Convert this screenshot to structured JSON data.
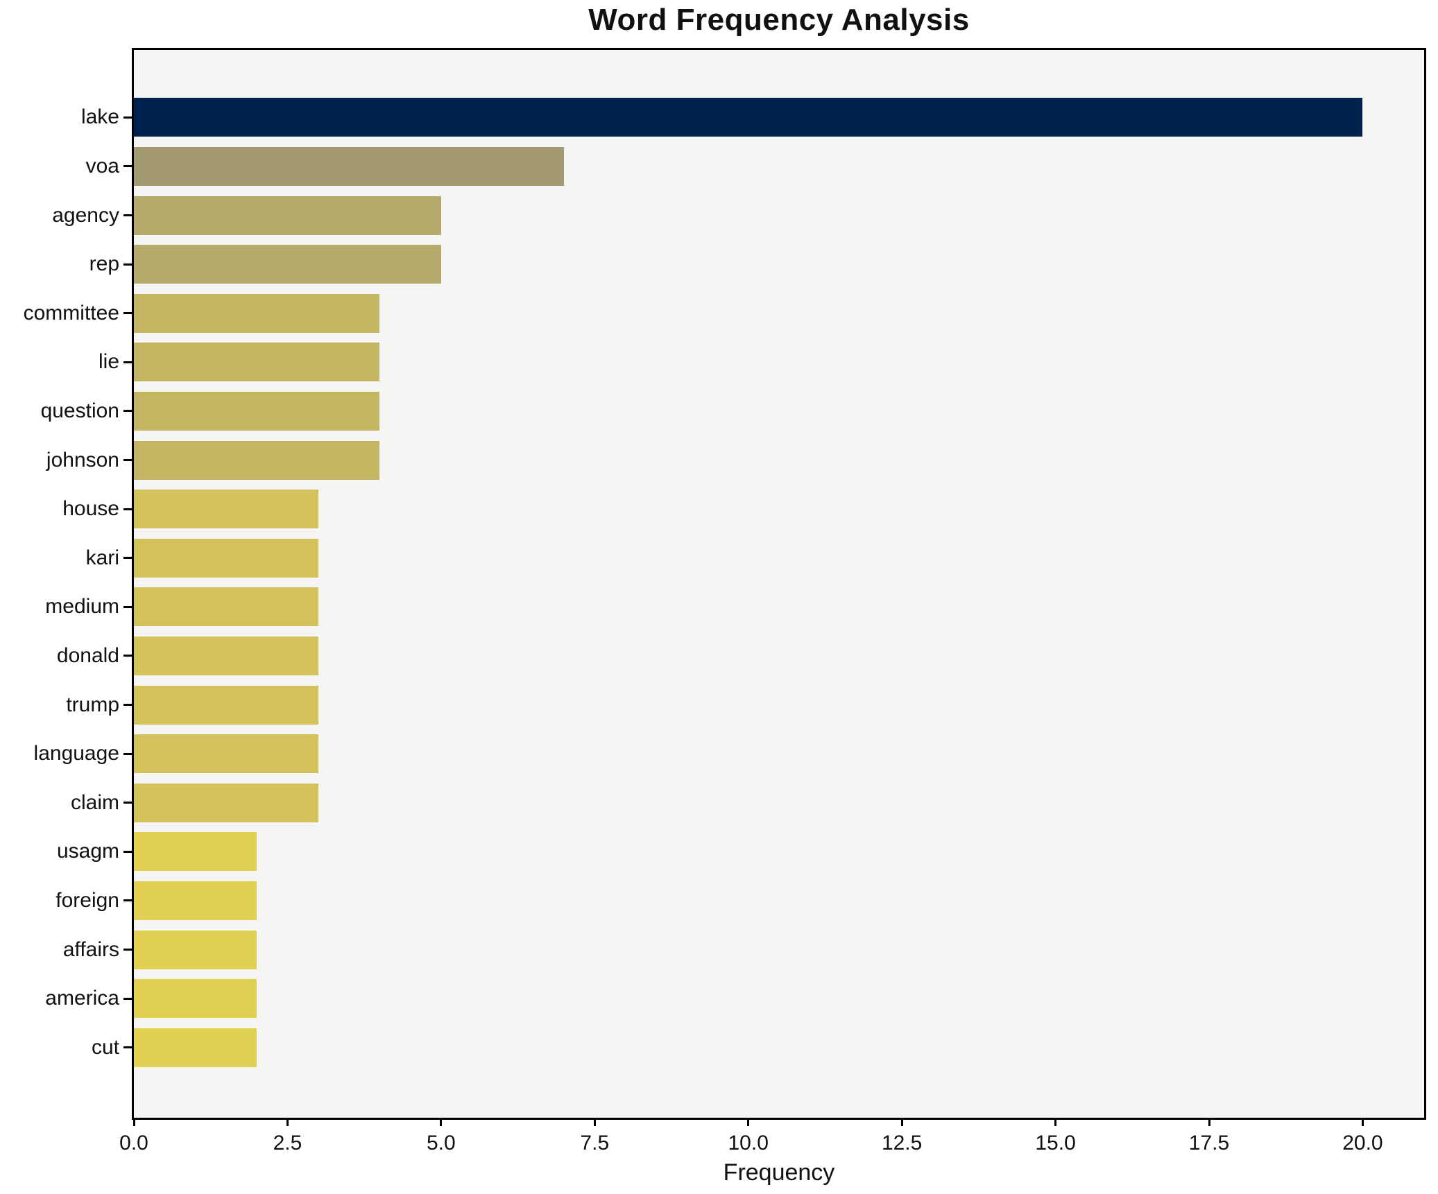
{
  "chart_data": {
    "type": "bar",
    "orientation": "horizontal",
    "title": "Word Frequency Analysis",
    "xlabel": "Frequency",
    "ylabel": "",
    "categories": [
      "lake",
      "voa",
      "agency",
      "rep",
      "committee",
      "lie",
      "question",
      "johnson",
      "house",
      "kari",
      "medium",
      "donald",
      "trump",
      "language",
      "claim",
      "usagm",
      "foreign",
      "affairs",
      "america",
      "cut"
    ],
    "values": [
      20,
      7,
      5,
      5,
      4,
      4,
      4,
      4,
      3,
      3,
      3,
      3,
      3,
      3,
      3,
      2,
      2,
      2,
      2,
      2
    ],
    "bar_colors": [
      "#00224e",
      "#a39a72",
      "#b5aa6a",
      "#b5aa6a",
      "#c3b561",
      "#c3b561",
      "#c3b561",
      "#c3b561",
      "#d3c15b",
      "#d3c15b",
      "#d3c15b",
      "#d3c15b",
      "#d3c15b",
      "#d3c15b",
      "#d3c15b",
      "#e1d051",
      "#e1d051",
      "#e1d051",
      "#e1d051",
      "#e1d051"
    ],
    "xlim": [
      0,
      21
    ],
    "x_ticks": [
      0,
      2.5,
      5,
      7.5,
      10,
      12.5,
      15,
      17.5,
      20
    ],
    "x_tick_labels": [
      "0.0",
      "2.5",
      "5.0",
      "7.5",
      "10.0",
      "12.5",
      "15.0",
      "17.5",
      "20.0"
    ],
    "grid": false,
    "legend": null,
    "plot_background": "#f5f5f3",
    "page_background": "#ffffff",
    "spine_color": "#000000",
    "colormap_note": "cividis reversed: high value = dark navy, low value = yellow"
  }
}
